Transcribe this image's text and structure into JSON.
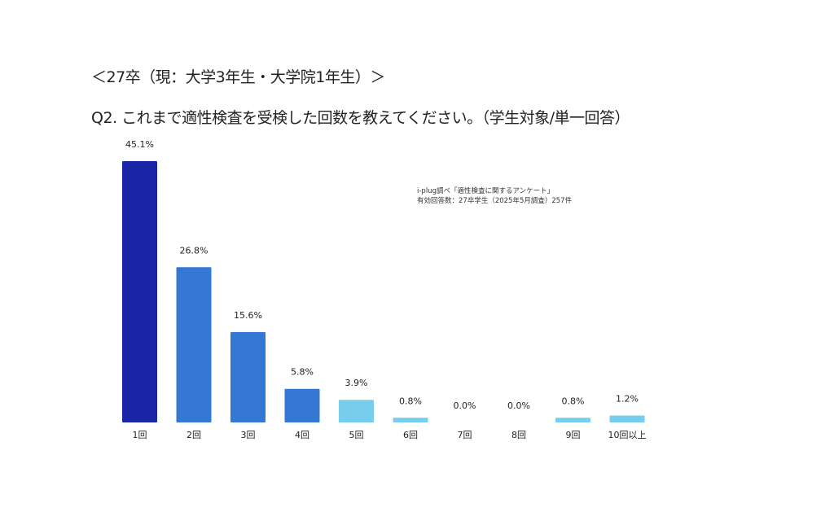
{
  "header": {
    "cohort_title": "＜27卒（現：大学3年生・大学院1年生）＞",
    "question": "Q2. これまで適性検査を受検した回数を教えてください。（学生対象/単一回答）"
  },
  "source": {
    "line1": "i-plug調べ「適性検査に関するアンケート」",
    "line2": "有効回答数：27卒学生（2025年5月調査）257件"
  },
  "chart_data": {
    "type": "bar",
    "title": "",
    "xlabel": "",
    "ylabel": "",
    "categories": [
      "1回",
      "2回",
      "3回",
      "4回",
      "5回",
      "6回",
      "7回",
      "8回",
      "9回",
      "10回以上"
    ],
    "values": [
      45.1,
      26.8,
      15.6,
      5.8,
      3.9,
      0.8,
      0.0,
      0.0,
      0.8,
      1.2
    ],
    "data_labels": [
      "45.1%",
      "26.8%",
      "15.6%",
      "5.8%",
      "3.9%",
      "0.8%",
      "0.0%",
      "0.0%",
      "0.8%",
      "1.2%"
    ],
    "colors": [
      "#1b26a6",
      "#3478d3",
      "#3478d3",
      "#3478d3",
      "#76cdec",
      "#76cdec",
      "#76cdec",
      "#76cdec",
      "#76cdec",
      "#76cdec"
    ],
    "ylim": [
      0,
      50
    ],
    "grid": false,
    "legend": "none"
  }
}
